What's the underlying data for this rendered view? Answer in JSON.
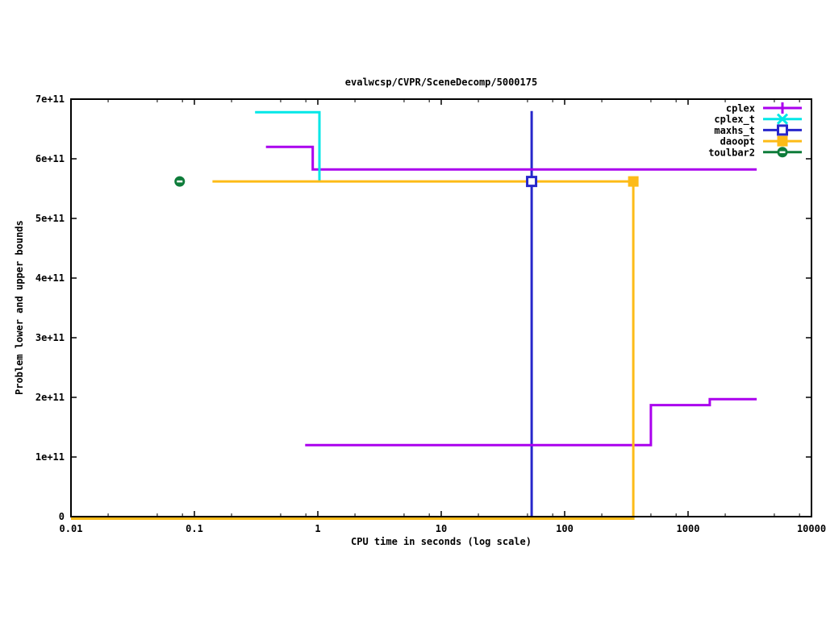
{
  "page": {
    "background": "#ffffff",
    "border_color": "#000000"
  },
  "chart_data": {
    "type": "line",
    "title": "evalwcsp/CVPR/SceneDecomp/5000175",
    "xlabel": "CPU time in seconds (log scale)",
    "ylabel": "Problem lower and upper bounds",
    "x_scale": "log",
    "xlim": [
      0.01,
      10000
    ],
    "ylim": [
      0,
      700000000000.0
    ],
    "grid": false,
    "x_ticks": [
      {
        "v": 0.01,
        "label": "0.01"
      },
      {
        "v": 0.1,
        "label": "0.1"
      },
      {
        "v": 1,
        "label": "1"
      },
      {
        "v": 10,
        "label": "10"
      },
      {
        "v": 100,
        "label": "100"
      },
      {
        "v": 1000,
        "label": "1000"
      },
      {
        "v": 10000,
        "label": "10000"
      }
    ],
    "x_minor_mults": [
      2,
      5,
      8
    ],
    "y_ticks": [
      {
        "v": 0,
        "label": "0"
      },
      {
        "v": 100000000000.0,
        "label": "1e+11"
      },
      {
        "v": 200000000000.0,
        "label": "2e+11"
      },
      {
        "v": 300000000000.0,
        "label": "3e+11"
      },
      {
        "v": 400000000000.0,
        "label": "4e+11"
      },
      {
        "v": 500000000000.0,
        "label": "5e+11"
      },
      {
        "v": 600000000000.0,
        "label": "6e+11"
      },
      {
        "v": 700000000000.0,
        "label": "7e+11"
      }
    ],
    "legend": {
      "position": "top-right"
    },
    "series": [
      {
        "name": "cplex",
        "color": "#aa00ee",
        "marker": "plus",
        "segments": [
          [
            [
              0.38,
              620000000000.0
            ],
            [
              0.91,
              620000000000.0
            ],
            [
              0.91,
              582000000000.0
            ],
            [
              3600,
              582000000000.0
            ]
          ],
          [
            [
              0.79,
              120000000000.0
            ],
            [
              500,
              120000000000.0
            ],
            [
              500,
              187000000000.0
            ],
            [
              1500,
              187000000000.0
            ],
            [
              1500,
              197000000000.0
            ],
            [
              3600,
              197000000000.0
            ]
          ]
        ],
        "points": []
      },
      {
        "name": "cplex_t",
        "color": "#00e7e7",
        "marker": "cross",
        "segments": [
          [
            [
              0.31,
              678000000000.0
            ],
            [
              1.03,
              678000000000.0
            ],
            [
              1.03,
              563000000000.0
            ]
          ]
        ],
        "points": []
      },
      {
        "name": "maxhs_t",
        "color": "#2727cb",
        "marker": "open-square",
        "segments": [
          [
            [
              54,
              0
            ],
            [
              54,
              680000000000.0
            ]
          ]
        ],
        "points": [
          [
            54,
            562000000000.0
          ]
        ]
      },
      {
        "name": "daoopt",
        "color": "#fdbb17",
        "marker": "filled-square",
        "segments": [
          [
            [
              0.14,
              562000000000.0
            ],
            [
              360,
              562000000000.0
            ]
          ],
          [
            [
              0.01,
              0
            ],
            [
              360,
              0
            ],
            [
              360,
              562000000000.0
            ]
          ]
        ],
        "points": [
          [
            360,
            562000000000.0
          ]
        ]
      },
      {
        "name": "toulbar2",
        "color": "#0e7c3a",
        "marker": "circle-dash",
        "segments": [],
        "points": [
          [
            0.076,
            562000000000.0
          ]
        ]
      }
    ]
  }
}
